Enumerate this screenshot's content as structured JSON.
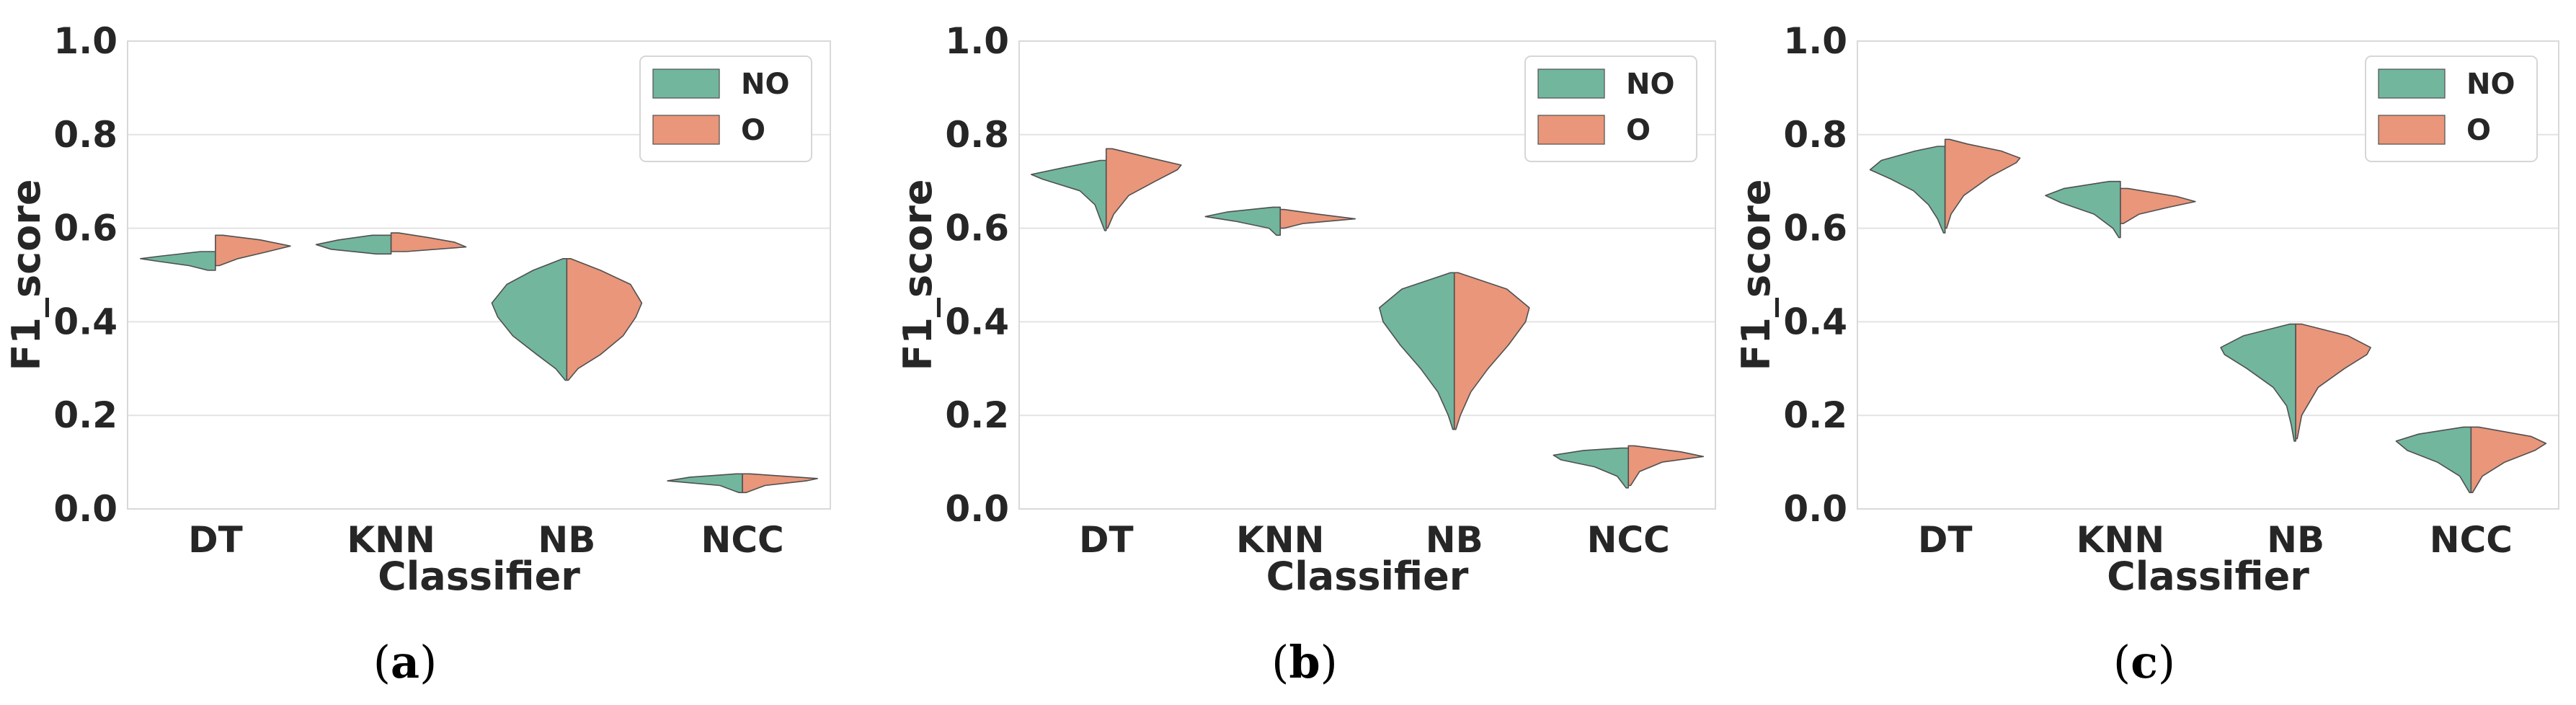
{
  "colors": {
    "NO": "#72b69e",
    "O": "#e9967a"
  },
  "chart_data": [
    {
      "type": "violin",
      "caption_letter": "a",
      "xlabel": "Classifier",
      "ylabel": "F1_score",
      "ylim": [
        0.0,
        1.0
      ],
      "yticks": [
        "0.0",
        "0.2",
        "0.4",
        "0.6",
        "0.8",
        "1.0"
      ],
      "categories": [
        "DT",
        "KNN",
        "NB",
        "NCC"
      ],
      "legend": {
        "position": "top-right",
        "entries": [
          "NO",
          "O"
        ]
      },
      "grid": true,
      "series": [
        {
          "name": "NO",
          "violins": [
            {
              "min": 0.51,
              "max": 0.55,
              "density": [
                [
                  0.51,
                  0.1
                ],
                [
                  0.52,
                  0.35
                ],
                [
                  0.53,
                  0.8
                ],
                [
                  0.535,
                  1.0
                ],
                [
                  0.54,
                  0.75
                ],
                [
                  0.55,
                  0.2
                ]
              ]
            },
            {
              "min": 0.545,
              "max": 0.585,
              "density": [
                [
                  0.545,
                  0.2
                ],
                [
                  0.555,
                  0.8
                ],
                [
                  0.565,
                  1.0
                ],
                [
                  0.575,
                  0.7
                ],
                [
                  0.585,
                  0.25
                ]
              ]
            },
            {
              "min": 0.275,
              "max": 0.535,
              "density": [
                [
                  0.275,
                  0.02
                ],
                [
                  0.3,
                  0.15
                ],
                [
                  0.33,
                  0.4
                ],
                [
                  0.37,
                  0.72
                ],
                [
                  0.41,
                  0.92
                ],
                [
                  0.44,
                  1.0
                ],
                [
                  0.48,
                  0.8
                ],
                [
                  0.51,
                  0.45
                ],
                [
                  0.535,
                  0.05
                ]
              ]
            },
            {
              "min": 0.035,
              "max": 0.075,
              "density": [
                [
                  0.035,
                  0.05
                ],
                [
                  0.05,
                  0.3
                ],
                [
                  0.06,
                  1.0
                ],
                [
                  0.068,
                  0.7
                ],
                [
                  0.075,
                  0.08
                ]
              ]
            }
          ]
        },
        {
          "name": "O",
          "violins": [
            {
              "min": 0.52,
              "max": 0.585,
              "density": [
                [
                  0.52,
                  0.05
                ],
                [
                  0.535,
                  0.3
                ],
                [
                  0.55,
                  0.7
                ],
                [
                  0.562,
                  1.0
                ],
                [
                  0.575,
                  0.6
                ],
                [
                  0.585,
                  0.1
                ]
              ]
            },
            {
              "min": 0.55,
              "max": 0.59,
              "density": [
                [
                  0.55,
                  0.2
                ],
                [
                  0.56,
                  1.0
                ],
                [
                  0.57,
                  0.85
                ],
                [
                  0.58,
                  0.5
                ],
                [
                  0.59,
                  0.1
                ]
              ]
            },
            {
              "min": 0.275,
              "max": 0.535,
              "density": [
                [
                  0.275,
                  0.02
                ],
                [
                  0.3,
                  0.15
                ],
                [
                  0.33,
                  0.45
                ],
                [
                  0.37,
                  0.75
                ],
                [
                  0.41,
                  0.92
                ],
                [
                  0.44,
                  1.0
                ],
                [
                  0.48,
                  0.85
                ],
                [
                  0.51,
                  0.45
                ],
                [
                  0.535,
                  0.05
                ]
              ]
            },
            {
              "min": 0.035,
              "max": 0.075,
              "density": [
                [
                  0.035,
                  0.05
                ],
                [
                  0.05,
                  0.3
                ],
                [
                  0.06,
                  0.85
                ],
                [
                  0.065,
                  1.0
                ],
                [
                  0.075,
                  0.1
                ]
              ]
            }
          ]
        }
      ]
    },
    {
      "type": "violin",
      "caption_letter": "b",
      "xlabel": "Classifier",
      "ylabel": "F1_score",
      "ylim": [
        0.0,
        1.0
      ],
      "yticks": [
        "0.0",
        "0.2",
        "0.4",
        "0.6",
        "0.8",
        "1.0"
      ],
      "categories": [
        "DT",
        "KNN",
        "NB",
        "NCC"
      ],
      "legend": {
        "position": "top-right",
        "entries": [
          "NO",
          "O"
        ]
      },
      "grid": true,
      "series": [
        {
          "name": "NO",
          "violins": [
            {
              "min": 0.595,
              "max": 0.745,
              "density": [
                [
                  0.595,
                  0.02
                ],
                [
                  0.62,
                  0.08
                ],
                [
                  0.65,
                  0.15
                ],
                [
                  0.68,
                  0.35
                ],
                [
                  0.705,
                  0.85
                ],
                [
                  0.715,
                  1.0
                ],
                [
                  0.73,
                  0.55
                ],
                [
                  0.745,
                  0.08
                ]
              ]
            },
            {
              "min": 0.585,
              "max": 0.645,
              "density": [
                [
                  0.585,
                  0.05
                ],
                [
                  0.6,
                  0.15
                ],
                [
                  0.615,
                  0.6
                ],
                [
                  0.625,
                  1.0
                ],
                [
                  0.635,
                  0.7
                ],
                [
                  0.645,
                  0.1
                ]
              ]
            },
            {
              "min": 0.17,
              "max": 0.505,
              "density": [
                [
                  0.17,
                  0.02
                ],
                [
                  0.2,
                  0.08
                ],
                [
                  0.25,
                  0.22
                ],
                [
                  0.3,
                  0.45
                ],
                [
                  0.35,
                  0.72
                ],
                [
                  0.4,
                  0.95
                ],
                [
                  0.43,
                  1.0
                ],
                [
                  0.47,
                  0.7
                ],
                [
                  0.505,
                  0.05
                ]
              ]
            },
            {
              "min": 0.045,
              "max": 0.13,
              "density": [
                [
                  0.045,
                  0.03
                ],
                [
                  0.07,
                  0.15
                ],
                [
                  0.09,
                  0.45
                ],
                [
                  0.105,
                  0.9
                ],
                [
                  0.115,
                  1.0
                ],
                [
                  0.125,
                  0.6
                ],
                [
                  0.13,
                  0.1
                ]
              ]
            }
          ]
        },
        {
          "name": "O",
          "violins": [
            {
              "min": 0.6,
              "max": 0.77,
              "density": [
                [
                  0.6,
                  0.02
                ],
                [
                  0.63,
                  0.1
                ],
                [
                  0.67,
                  0.3
                ],
                [
                  0.7,
                  0.65
                ],
                [
                  0.725,
                  0.95
                ],
                [
                  0.735,
                  1.0
                ],
                [
                  0.75,
                  0.6
                ],
                [
                  0.77,
                  0.08
                ]
              ]
            },
            {
              "min": 0.6,
              "max": 0.64,
              "density": [
                [
                  0.6,
                  0.05
                ],
                [
                  0.61,
                  0.3
                ],
                [
                  0.62,
                  1.0
                ],
                [
                  0.63,
                  0.5
                ],
                [
                  0.64,
                  0.05
                ]
              ]
            },
            {
              "min": 0.17,
              "max": 0.505,
              "density": [
                [
                  0.17,
                  0.02
                ],
                [
                  0.2,
                  0.08
                ],
                [
                  0.25,
                  0.22
                ],
                [
                  0.3,
                  0.45
                ],
                [
                  0.35,
                  0.72
                ],
                [
                  0.4,
                  0.95
                ],
                [
                  0.43,
                  1.0
                ],
                [
                  0.47,
                  0.7
                ],
                [
                  0.505,
                  0.05
                ]
              ]
            },
            {
              "min": 0.05,
              "max": 0.135,
              "density": [
                [
                  0.05,
                  0.03
                ],
                [
                  0.08,
                  0.15
                ],
                [
                  0.1,
                  0.45
                ],
                [
                  0.112,
                  1.0
                ],
                [
                  0.122,
                  0.7
                ],
                [
                  0.135,
                  0.08
                ]
              ]
            }
          ]
        }
      ]
    },
    {
      "type": "violin",
      "caption_letter": "c",
      "xlabel": "Classifier",
      "ylabel": "F1_score",
      "ylim": [
        0.0,
        1.0
      ],
      "yticks": [
        "0.0",
        "0.2",
        "0.4",
        "0.6",
        "0.8",
        "1.0"
      ],
      "categories": [
        "DT",
        "KNN",
        "NB",
        "NCC"
      ],
      "legend": {
        "position": "top-right",
        "entries": [
          "NO",
          "O"
        ]
      },
      "grid": true,
      "series": [
        {
          "name": "NO",
          "violins": [
            {
              "min": 0.59,
              "max": 0.775,
              "density": [
                [
                  0.59,
                  0.02
                ],
                [
                  0.62,
                  0.1
                ],
                [
                  0.65,
                  0.22
                ],
                [
                  0.68,
                  0.42
                ],
                [
                  0.705,
                  0.72
                ],
                [
                  0.725,
                  1.0
                ],
                [
                  0.745,
                  0.85
                ],
                [
                  0.765,
                  0.4
                ],
                [
                  0.775,
                  0.1
                ]
              ]
            },
            {
              "min": 0.58,
              "max": 0.7,
              "density": [
                [
                  0.58,
                  0.02
                ],
                [
                  0.6,
                  0.1
                ],
                [
                  0.63,
                  0.35
                ],
                [
                  0.655,
                  0.8
                ],
                [
                  0.67,
                  1.0
                ],
                [
                  0.685,
                  0.75
                ],
                [
                  0.7,
                  0.15
                ]
              ]
            },
            {
              "min": 0.145,
              "max": 0.395,
              "density": [
                [
                  0.145,
                  0.02
                ],
                [
                  0.18,
                  0.06
                ],
                [
                  0.22,
                  0.12
                ],
                [
                  0.26,
                  0.3
                ],
                [
                  0.3,
                  0.65
                ],
                [
                  0.33,
                  0.95
                ],
                [
                  0.345,
                  1.0
                ],
                [
                  0.37,
                  0.7
                ],
                [
                  0.395,
                  0.08
                ]
              ]
            },
            {
              "min": 0.035,
              "max": 0.175,
              "density": [
                [
                  0.035,
                  0.02
                ],
                [
                  0.07,
                  0.15
                ],
                [
                  0.1,
                  0.45
                ],
                [
                  0.125,
                  0.85
                ],
                [
                  0.145,
                  1.0
                ],
                [
                  0.16,
                  0.7
                ],
                [
                  0.175,
                  0.1
                ]
              ]
            }
          ]
        },
        {
          "name": "O",
          "violins": [
            {
              "min": 0.6,
              "max": 0.79,
              "density": [
                [
                  0.6,
                  0.02
                ],
                [
                  0.63,
                  0.08
                ],
                [
                  0.67,
                  0.25
                ],
                [
                  0.71,
                  0.6
                ],
                [
                  0.74,
                  0.95
                ],
                [
                  0.75,
                  1.0
                ],
                [
                  0.765,
                  0.75
                ],
                [
                  0.78,
                  0.3
                ],
                [
                  0.79,
                  0.06
                ]
              ]
            },
            {
              "min": 0.61,
              "max": 0.685,
              "density": [
                [
                  0.61,
                  0.04
                ],
                [
                  0.63,
                  0.25
                ],
                [
                  0.645,
                  0.65
                ],
                [
                  0.657,
                  1.0
                ],
                [
                  0.668,
                  0.75
                ],
                [
                  0.685,
                  0.1
                ]
              ]
            },
            {
              "min": 0.15,
              "max": 0.395,
              "density": [
                [
                  0.15,
                  0.02
                ],
                [
                  0.2,
                  0.08
                ],
                [
                  0.26,
                  0.3
                ],
                [
                  0.3,
                  0.65
                ],
                [
                  0.33,
                  0.95
                ],
                [
                  0.345,
                  1.0
                ],
                [
                  0.37,
                  0.7
                ],
                [
                  0.395,
                  0.08
                ]
              ]
            },
            {
              "min": 0.035,
              "max": 0.175,
              "density": [
                [
                  0.035,
                  0.02
                ],
                [
                  0.07,
                  0.15
                ],
                [
                  0.1,
                  0.45
                ],
                [
                  0.125,
                  0.85
                ],
                [
                  0.14,
                  1.0
                ],
                [
                  0.155,
                  0.8
                ],
                [
                  0.175,
                  0.1
                ]
              ]
            }
          ]
        }
      ]
    }
  ]
}
